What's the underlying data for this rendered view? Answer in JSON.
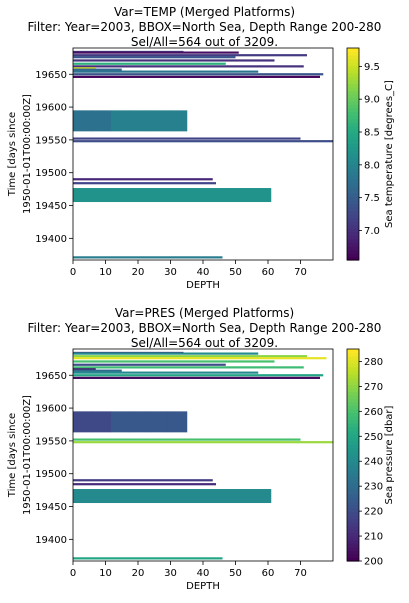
{
  "chart_data": [
    {
      "type": "heatmap",
      "title_lines": [
        "Var=TEMP (Merged Platforms)",
        "Filter: Year=2003, BBOX=North Sea, Depth Range 200-280",
        "Sel/All=564 out of 3209."
      ],
      "xlabel": "DEPTH",
      "ylabel_lines": [
        "Time [days since",
        "1950-01-01T00:00:00Z]"
      ],
      "xlim": [
        0,
        80
      ],
      "ylim": [
        19367,
        19690
      ],
      "xticks": [
        0,
        10,
        20,
        30,
        40,
        50,
        60,
        70
      ],
      "yticks": [
        19400,
        19450,
        19500,
        19550,
        19600,
        19650
      ],
      "colorbar": {
        "label": "Sea temperature [degrees_C]",
        "colormap": "viridis",
        "range": [
          6.55,
          9.78
        ],
        "ticks": [
          7.0,
          7.5,
          8.0,
          8.5,
          9.0,
          9.5
        ]
      },
      "series": [
        {
          "t": 19684,
          "depth_max": 34,
          "value": 7.2
        },
        {
          "t": 19683,
          "depth_max": 51,
          "value": 6.7
        },
        {
          "t": 19679,
          "depth_max": 72,
          "value": 7.1
        },
        {
          "t": 19676,
          "depth_max": 50,
          "value": 7.4
        },
        {
          "t": 19671,
          "depth_max": 62,
          "value": 7.0
        },
        {
          "t": 19666,
          "depth_max": 47,
          "value": 8.6
        },
        {
          "t": 19662,
          "depth_max": 71,
          "value": 7.0
        },
        {
          "t": 19659,
          "depth_max": 7,
          "value": 9.6
        },
        {
          "t": 19657,
          "depth_max": 15,
          "value": 7.6
        },
        {
          "t": 19654,
          "depth_max": 57,
          "value": 7.8
        },
        {
          "t": 19650,
          "depth_max": 77,
          "value": 7.4
        },
        {
          "t": 19646,
          "depth_max": 76,
          "value": 6.6
        },
        {
          "t": 19579,
          "depth_max": 35,
          "value": 7.9
        },
        {
          "t": 19552,
          "depth_max": 70,
          "value": 7.2
        },
        {
          "t": 19548,
          "depth_max": 80,
          "value": 7.3
        },
        {
          "t": 19490,
          "depth_max": 43,
          "value": 6.9
        },
        {
          "t": 19484,
          "depth_max": 44,
          "value": 7.2
        },
        {
          "t": 19466,
          "depth_max": 61,
          "value": 8.2
        },
        {
          "t": 19371,
          "depth_max": 46,
          "value": 7.9
        }
      ]
    },
    {
      "type": "heatmap",
      "title_lines": [
        "Var=PRES (Merged Platforms)",
        "Filter: Year=2003, BBOX=North Sea, Depth Range 200-280",
        "Sel/All=564 out of 3209."
      ],
      "xlabel": "DEPTH",
      "ylabel_lines": [
        "Time [days since",
        "1950-01-01T00:00:00Z]"
      ],
      "xlim": [
        0,
        80
      ],
      "ylim": [
        19367,
        19690
      ],
      "xticks": [
        0,
        10,
        20,
        30,
        40,
        50,
        60,
        70
      ],
      "yticks": [
        19400,
        19450,
        19500,
        19550,
        19600,
        19650
      ],
      "colorbar": {
        "label": "Sea pressure [dbar]",
        "colormap": "viridis",
        "range": [
          200,
          285
        ],
        "ticks": [
          200,
          210,
          220,
          230,
          240,
          250,
          260,
          270,
          280
        ]
      },
      "series": [
        {
          "t": 19684,
          "depth_max": 34,
          "value": 215
        },
        {
          "t": 19683,
          "depth_max": 57,
          "value": 240
        },
        {
          "t": 19679,
          "depth_max": 72,
          "value": 270
        },
        {
          "t": 19676,
          "depth_max": 78,
          "value": 282
        },
        {
          "t": 19671,
          "depth_max": 62,
          "value": 260
        },
        {
          "t": 19666,
          "depth_max": 47,
          "value": 220
        },
        {
          "t": 19662,
          "depth_max": 71,
          "value": 258
        },
        {
          "t": 19659,
          "depth_max": 7,
          "value": 205
        },
        {
          "t": 19657,
          "depth_max": 15,
          "value": 230
        },
        {
          "t": 19654,
          "depth_max": 57,
          "value": 240
        },
        {
          "t": 19650,
          "depth_max": 77,
          "value": 250
        },
        {
          "t": 19646,
          "depth_max": 76,
          "value": 202
        },
        {
          "t": 19579,
          "depth_max": 35,
          "value": 222
        },
        {
          "t": 19552,
          "depth_max": 70,
          "value": 260
        },
        {
          "t": 19548,
          "depth_max": 80,
          "value": 272
        },
        {
          "t": 19490,
          "depth_max": 43,
          "value": 215
        },
        {
          "t": 19484,
          "depth_max": 44,
          "value": 210
        },
        {
          "t": 19466,
          "depth_max": 61,
          "value": 240
        },
        {
          "t": 19371,
          "depth_max": 46,
          "value": 250
        }
      ]
    }
  ]
}
